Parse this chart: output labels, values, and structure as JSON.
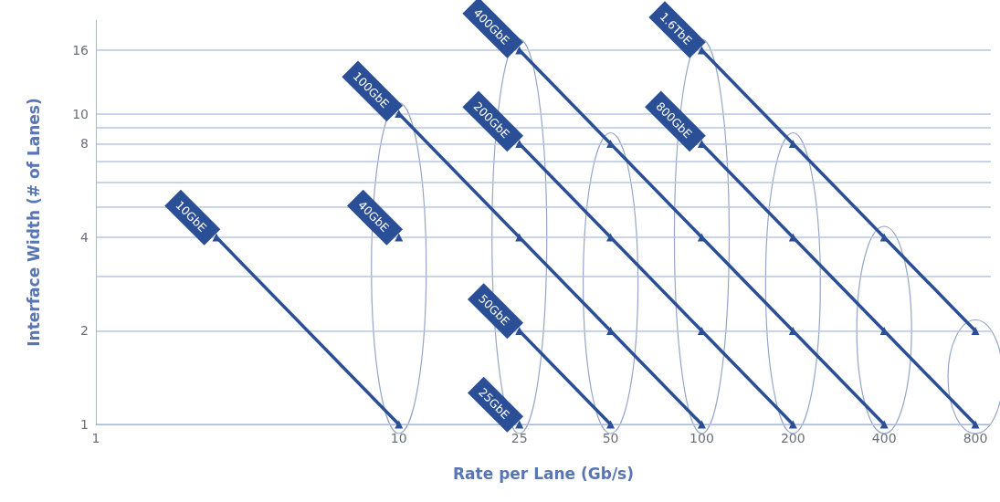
{
  "chart_data": {
    "type": "line",
    "xlabel": "Rate per Lane (Gb/s)",
    "ylabel": "Interface Width (# of Lanes)",
    "log": "xy",
    "xlim": [
      1,
      900
    ],
    "xticks": [
      1,
      10,
      25,
      50,
      100,
      200,
      400,
      800
    ],
    "ylim": [
      1,
      20
    ],
    "yticks": [
      1,
      2,
      {
        "value": 3,
        "label": null
      },
      4,
      {
        "value": 5,
        "label": null
      },
      {
        "value": 6,
        "label": null
      },
      {
        "value": 7,
        "label": null
      },
      8,
      {
        "value": 9,
        "label": null
      },
      10,
      16
    ],
    "grid": "y",
    "legend": false,
    "marker": "triangle",
    "line_style": "solid",
    "series": [
      {
        "name": "10GbE",
        "color": "#2a4f96",
        "x": [
          2.5,
          10
        ],
        "values": [
          4,
          1
        ]
      },
      {
        "name": "40GbE",
        "color": "#2a4f96",
        "x": [
          10
        ],
        "values": [
          4
        ]
      },
      {
        "name": "100GbE",
        "color": "#2a4f96",
        "x": [
          10,
          25,
          50,
          100
        ],
        "values": [
          10,
          4,
          2,
          1
        ]
      },
      {
        "name": "25GbE",
        "color": "#2a4f96",
        "x": [
          25
        ],
        "values": [
          1
        ]
      },
      {
        "name": "50GbE",
        "color": "#2a4f96",
        "x": [
          25,
          50
        ],
        "values": [
          2,
          1
        ]
      },
      {
        "name": "200GbE",
        "color": "#2a4f96",
        "x": [
          25,
          50,
          100,
          200
        ],
        "values": [
          8,
          4,
          2,
          1
        ]
      },
      {
        "name": "400GbE",
        "color": "#2a4f96",
        "x": [
          25,
          50,
          100,
          200,
          400
        ],
        "values": [
          16,
          8,
          4,
          2,
          1
        ]
      },
      {
        "name": "800GbE",
        "color": "#2a4f96",
        "x": [
          100,
          200,
          400,
          800
        ],
        "values": [
          8,
          4,
          2,
          1
        ]
      },
      {
        "name": "1.6TbE",
        "color": "#2a4f96",
        "x": [
          100,
          200,
          400,
          800
        ],
        "values": [
          16,
          8,
          4,
          2
        ]
      }
    ]
  }
}
